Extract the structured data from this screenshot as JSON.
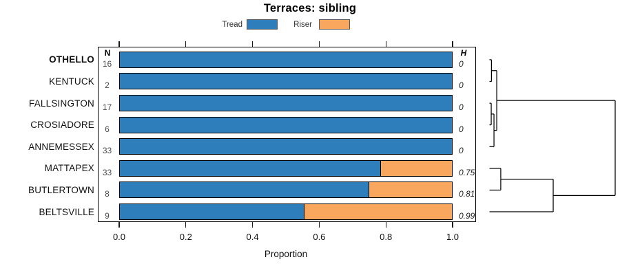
{
  "title": "Terraces: sibling",
  "legend": [
    {
      "label": "Tread",
      "color": "#2E7EBC"
    },
    {
      "label": "Riser",
      "color": "#F9A65E"
    }
  ],
  "columns": {
    "n_header": "N",
    "h_header": "H"
  },
  "axis": {
    "label": "Proportion",
    "tick_labels": [
      "0.0",
      "0.2",
      "0.4",
      "0.6",
      "0.8",
      "1.0"
    ]
  },
  "rows": [
    {
      "label": "OTHELLO",
      "bold": true,
      "n": "16",
      "h": "0",
      "tread": 1.0,
      "riser": 0.0
    },
    {
      "label": "KENTUCK",
      "bold": false,
      "n": "2",
      "h": "0",
      "tread": 1.0,
      "riser": 0.0
    },
    {
      "label": "FALLSINGTON",
      "bold": false,
      "n": "17",
      "h": "0",
      "tread": 1.0,
      "riser": 0.0
    },
    {
      "label": "CROSIADORE",
      "bold": false,
      "n": "6",
      "h": "0",
      "tread": 1.0,
      "riser": 0.0
    },
    {
      "label": "ANNEMESSEX",
      "bold": false,
      "n": "33",
      "h": "0",
      "tread": 1.0,
      "riser": 0.0
    },
    {
      "label": "MATTAPEX",
      "bold": false,
      "n": "33",
      "h": "0.75",
      "tread": 0.785,
      "riser": 0.215
    },
    {
      "label": "BUTLERTOWN",
      "bold": false,
      "n": "8",
      "h": "0.81",
      "tread": 0.75,
      "riser": 0.25
    },
    {
      "label": "BELTSVILLE",
      "bold": false,
      "n": "9",
      "h": "0.99",
      "tread": 0.555,
      "riser": 0.445
    }
  ],
  "chart_data": {
    "type": "bar",
    "orientation": "horizontal-stacked",
    "title": "Terraces: sibling",
    "xlabel": "Proportion",
    "xlim": [
      0,
      1
    ],
    "xticks": [
      0.0,
      0.2,
      0.4,
      0.6,
      0.8,
      1.0
    ],
    "grid": false,
    "legend_position": "top",
    "categories": [
      "OTHELLO",
      "KENTUCK",
      "FALLSINGTON",
      "CROSIADORE",
      "ANNEMESSEX",
      "MATTAPEX",
      "BUTLERTOWN",
      "BELTSVILLE"
    ],
    "series": [
      {
        "name": "Tread",
        "color": "#2E7EBC",
        "values": [
          1.0,
          1.0,
          1.0,
          1.0,
          1.0,
          0.785,
          0.75,
          0.555
        ]
      },
      {
        "name": "Riser",
        "color": "#F9A65E",
        "values": [
          0.0,
          0.0,
          0.0,
          0.0,
          0.0,
          0.215,
          0.25,
          0.445
        ]
      }
    ],
    "N_counts": [
      16,
      2,
      17,
      6,
      33,
      33,
      8,
      9
    ],
    "H_values": [
      0,
      0,
      0,
      0,
      0,
      0.75,
      0.81,
      0.99
    ],
    "dendrogram": {
      "side": "right",
      "leaf_order": [
        "OTHELLO",
        "KENTUCK",
        "FALLSINGTON",
        "CROSIADORE",
        "ANNEMESSEX",
        "MATTAPEX",
        "BUTLERTOWN",
        "BELTSVILLE"
      ],
      "merges": [
        {
          "a": "leaf:0",
          "b": "leaf:1",
          "height": 0.016
        },
        {
          "a": "leaf:2",
          "b": "leaf:3",
          "height": 0.014
        },
        {
          "a": "node:1",
          "b": "leaf:4",
          "height": 0.036
        },
        {
          "a": "node:0",
          "b": "node:2",
          "height": 0.058
        },
        {
          "a": "leaf:5",
          "b": "leaf:6",
          "height": 0.09
        },
        {
          "a": "node:4",
          "b": "leaf:7",
          "height": 0.507
        },
        {
          "a": "node:3",
          "b": "node:5",
          "height": 1.0
        }
      ]
    }
  }
}
